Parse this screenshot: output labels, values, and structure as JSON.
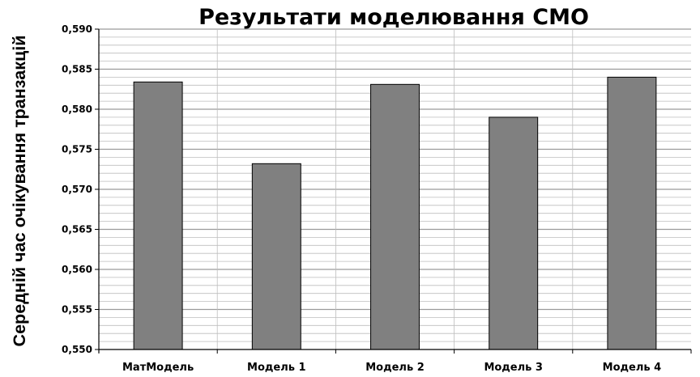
{
  "chart_data": {
    "type": "bar",
    "title": "Результати моделювання СМО",
    "xlabel": "",
    "ylabel": "Середній час очікування транзакцій",
    "categories": [
      "МатМодель",
      "Модель 1",
      "Модель 2",
      "Модель 3",
      "Модель 4"
    ],
    "values": [
      0.5834,
      0.5732,
      0.5831,
      0.579,
      0.584
    ],
    "ylim": [
      0.55,
      0.59
    ],
    "yticks": [
      "0,550",
      "0,555",
      "0,560",
      "0,565",
      "0,570",
      "0,575",
      "0,580",
      "0,585",
      "0,590"
    ],
    "major_step": 0.005,
    "minor_step": 0.001,
    "grid": true,
    "legend": "none",
    "bar_color": "#808080",
    "bar_edge_color": "#000000",
    "grid_color": "#bdbdbd"
  }
}
